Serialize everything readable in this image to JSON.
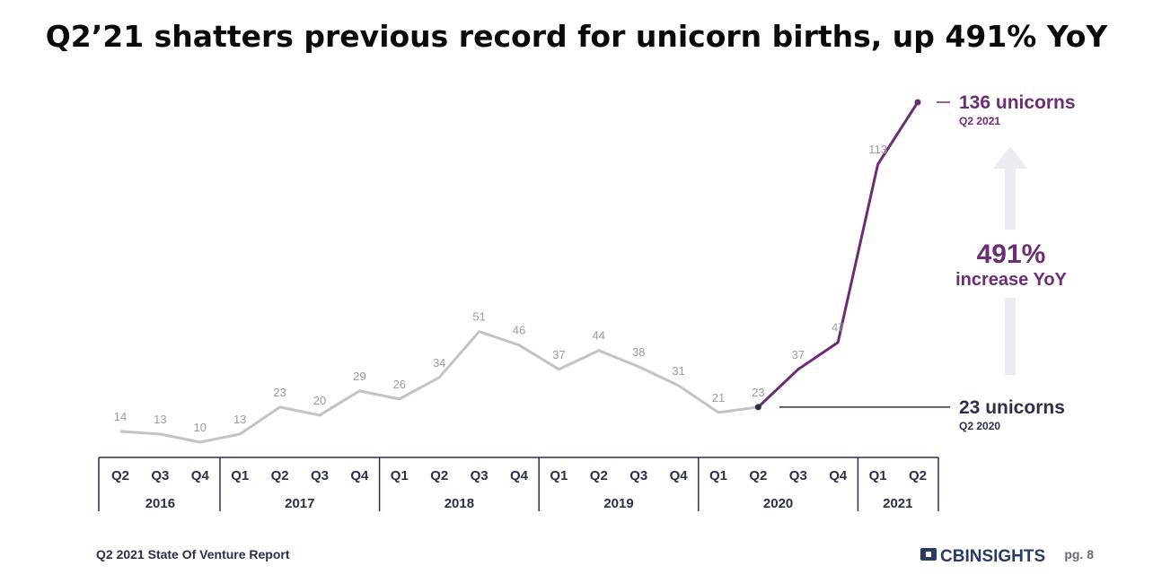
{
  "chart_data": {
    "type": "line",
    "title": "Q2’21 shatters previous record for unicorn births, up 491% YoY",
    "categories": [
      "Q2",
      "Q3",
      "Q4",
      "Q1",
      "Q2",
      "Q3",
      "Q4",
      "Q1",
      "Q2",
      "Q3",
      "Q4",
      "Q1",
      "Q2",
      "Q3",
      "Q4",
      "Q1",
      "Q2",
      "Q3",
      "Q4",
      "Q1",
      "Q2"
    ],
    "year_groups": [
      {
        "label": "2016",
        "count": 3
      },
      {
        "label": "2017",
        "count": 4
      },
      {
        "label": "2018",
        "count": 4
      },
      {
        "label": "2019",
        "count": 4
      },
      {
        "label": "2020",
        "count": 4
      },
      {
        "label": "2021",
        "count": 2
      }
    ],
    "values": [
      14,
      13,
      10,
      13,
      23,
      20,
      29,
      26,
      34,
      51,
      46,
      37,
      44,
      38,
      31,
      21,
      23,
      37,
      47,
      113,
      136
    ],
    "highlight_from_index": 16,
    "ylim": [
      0,
      140
    ],
    "annotations": {
      "top": {
        "value": "136 unicorns",
        "period": "Q2 2021"
      },
      "bottom": {
        "value": "23 unicorns",
        "period": "Q2 2020"
      },
      "increase": {
        "pct": "491%",
        "label": "increase YoY"
      }
    },
    "colors": {
      "base": "#c2c2c8",
      "highlight": "#6b2d73",
      "text": "#2b2f4a",
      "arrow": "#ecebf2"
    }
  },
  "footer": {
    "report": "Q2 2021 State Of Venture Report",
    "brand": "CBINSIGHTS",
    "page": "pg. 8"
  }
}
